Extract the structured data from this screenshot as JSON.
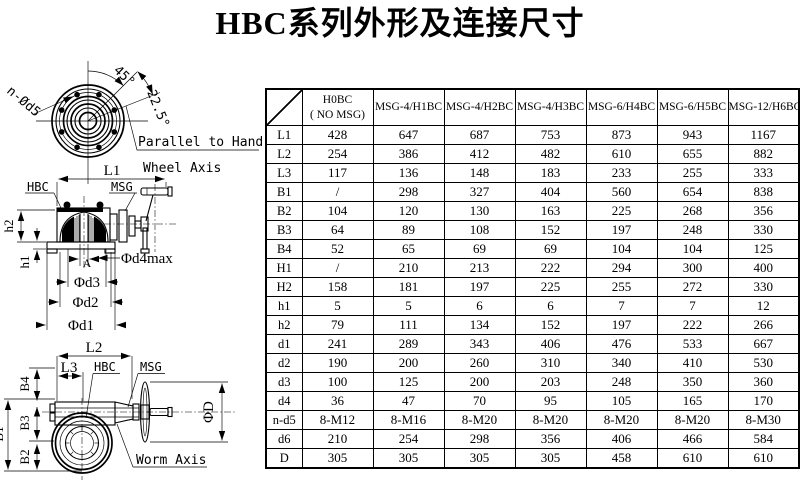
{
  "title": "HBC系列外形及连接尺寸",
  "drawings": {
    "flange_view": {
      "bolt_pattern": "n-Ød5",
      "angle_45": "45°",
      "angle_22_5": "22.5°",
      "note_line1": "Parallel to Hand",
      "note_line2": "Wheel Axis"
    },
    "side_view": {
      "dim_L1": "L1",
      "label_hbc": "HBC",
      "label_msg": "MSG",
      "dim_h2": "h2",
      "dim_h1": "h1",
      "dim_A": "A",
      "dim_d4": "Φd4max",
      "dim_d3": "Φd3",
      "dim_d2": "Φd2",
      "dim_d1": "Φd1"
    },
    "top_view": {
      "dim_L2": "L2",
      "dim_L3": "L3",
      "label_hbc": "HBC",
      "label_msg": "MSG",
      "dim_B4": "B4",
      "dim_B3": "B3",
      "dim_B2": "B2",
      "dim_B1": "B1",
      "dim_D": "ΦD",
      "label_worm_axis": "Worm Axis"
    }
  },
  "table": {
    "col_headers": [
      [
        "H0BC",
        "( NO MSG)"
      ],
      [
        "MSG-4/H1BC"
      ],
      [
        "MSG-4/H2BC"
      ],
      [
        "MSG-4/H3BC"
      ],
      [
        "MSG-6/H4BC"
      ],
      [
        "MSG-6/H5BC"
      ],
      [
        "MSG-12/H6BC"
      ]
    ],
    "rows": [
      {
        "label": "L1",
        "values": [
          "428",
          "647",
          "687",
          "753",
          "873",
          "943",
          "1167"
        ]
      },
      {
        "label": "L2",
        "values": [
          "254",
          "386",
          "412",
          "482",
          "610",
          "655",
          "882"
        ]
      },
      {
        "label": "L3",
        "values": [
          "117",
          "136",
          "148",
          "183",
          "233",
          "255",
          "333"
        ]
      },
      {
        "label": "B1",
        "values": [
          "/",
          "298",
          "327",
          "404",
          "560",
          "654",
          "838"
        ]
      },
      {
        "label": "B2",
        "values": [
          "104",
          "120",
          "130",
          "163",
          "225",
          "268",
          "356"
        ]
      },
      {
        "label": "B3",
        "values": [
          "64",
          "89",
          "108",
          "152",
          "197",
          "248",
          "330"
        ]
      },
      {
        "label": "B4",
        "values": [
          "52",
          "65",
          "69",
          "69",
          "104",
          "104",
          "125"
        ]
      },
      {
        "label": "H1",
        "values": [
          "/",
          "210",
          "213",
          "222",
          "294",
          "300",
          "400"
        ]
      },
      {
        "label": "H2",
        "values": [
          "158",
          "181",
          "197",
          "225",
          "255",
          "272",
          "330"
        ]
      },
      {
        "label": "h1",
        "values": [
          "5",
          "5",
          "6",
          "6",
          "7",
          "7",
          "12"
        ]
      },
      {
        "label": "h2",
        "values": [
          "79",
          "111",
          "134",
          "152",
          "197",
          "222",
          "266"
        ]
      },
      {
        "label": "d1",
        "values": [
          "241",
          "289",
          "343",
          "406",
          "476",
          "533",
          "667"
        ]
      },
      {
        "label": "d2",
        "values": [
          "190",
          "200",
          "260",
          "310",
          "340",
          "410",
          "530"
        ]
      },
      {
        "label": "d3",
        "values": [
          "100",
          "125",
          "200",
          "203",
          "248",
          "350",
          "360"
        ]
      },
      {
        "label": "d4",
        "values": [
          "36",
          "47",
          "70",
          "95",
          "105",
          "165",
          "170"
        ]
      },
      {
        "label": "n-d5",
        "values": [
          "8-M12",
          "8-M16",
          "8-M20",
          "8-M20",
          "8-M20",
          "8-M20",
          "8-M30"
        ]
      },
      {
        "label": "d6",
        "values": [
          "210",
          "254",
          "298",
          "356",
          "406",
          "466",
          "584"
        ]
      },
      {
        "label": "D",
        "values": [
          "305",
          "305",
          "305",
          "305",
          "458",
          "610",
          "610"
        ]
      }
    ]
  }
}
